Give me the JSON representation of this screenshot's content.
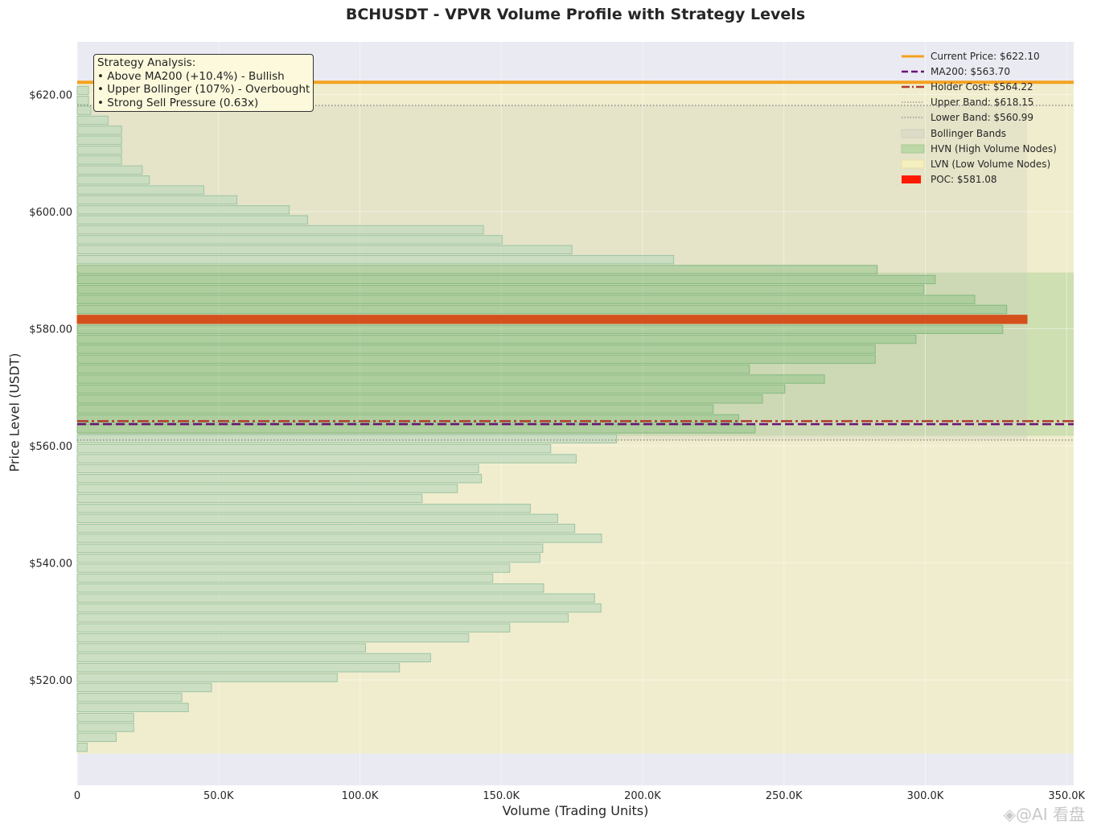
{
  "chart_data": {
    "type": "bar",
    "orientation": "horizontal",
    "title": "BCHUSDT - VPVR Volume Profile with Strategy Levels",
    "xlabel": "Volume (Trading Units)",
    "ylabel": "Price Level (USDT)",
    "xlim": [
      0,
      352500
    ],
    "ylim": [
      502,
      629
    ],
    "x_ticks": [
      0,
      50000,
      100000,
      150000,
      200000,
      250000,
      300000,
      350000
    ],
    "x_tick_labels": [
      "0",
      "50.0K",
      "100.0K",
      "150.0K",
      "200.0K",
      "250.0K",
      "300.0K",
      "350.0K"
    ],
    "y_ticks": [
      520,
      540,
      560,
      580,
      600,
      620
    ],
    "y_tick_labels": [
      "$520.00",
      "$540.00",
      "$560.00",
      "$580.00",
      "$600.00",
      "$620.00"
    ],
    "bin_size": 1.7,
    "price_levels": [
      508.5,
      510.2,
      511.9,
      513.6,
      515.3,
      517.0,
      518.7,
      520.4,
      522.1,
      523.8,
      525.5,
      527.2,
      528.9,
      530.6,
      532.3,
      534.0,
      535.7,
      537.4,
      539.1,
      540.8,
      542.5,
      544.2,
      545.9,
      547.6,
      549.3,
      551.0,
      552.7,
      554.4,
      556.1,
      557.8,
      559.5,
      561.2,
      562.9,
      564.6,
      566.3,
      568.0,
      569.7,
      571.4,
      573.1,
      574.8,
      576.5,
      578.2,
      579.9,
      581.6,
      583.3,
      585.0,
      586.7,
      588.4,
      590.1,
      591.8,
      593.5,
      595.2,
      596.9,
      598.6,
      600.3,
      602.0,
      603.7,
      605.4,
      607.1,
      608.8,
      610.5,
      612.2,
      613.9,
      615.6,
      617.3,
      619.0,
      620.7
    ],
    "volumes": [
      3500,
      13800,
      20000,
      20000,
      39300,
      37000,
      47500,
      92000,
      114000,
      125000,
      102000,
      138500,
      153000,
      173700,
      185300,
      183000,
      165000,
      147000,
      153000,
      163700,
      164700,
      185500,
      176000,
      170000,
      160300,
      122000,
      134500,
      143000,
      142000,
      176500,
      167500,
      190800,
      239800,
      234000,
      225000,
      242400,
      250300,
      264300,
      237800,
      282300,
      282300,
      296700,
      327400,
      336000,
      328800,
      317500,
      299500,
      303500,
      283000,
      211000,
      175000,
      150300,
      143700,
      81500,
      75000,
      56500,
      44800,
      25500,
      23000,
      15700,
      15700,
      15700,
      15700,
      10900,
      4800,
      4000,
      4000
    ],
    "bin_type": [
      "LVN",
      "LVN",
      "LVN",
      "LVN",
      "LVN",
      "LVN",
      "LVN",
      "LVN",
      "LVN",
      "LVN",
      "LVN",
      "LVN",
      "LVN",
      "LVN",
      "LVN",
      "LVN",
      "LVN",
      "LVN",
      "LVN",
      "LVN",
      "LVN",
      "LVN",
      "LVN",
      "LVN",
      "LVN",
      "LVN",
      "LVN",
      "LVN",
      "LVN",
      "LVN",
      "LVN",
      "LVN",
      "HVN",
      "HVN",
      "HVN",
      "HVN",
      "HVN",
      "HVN",
      "HVN",
      "HVN",
      "HVN",
      "HVN",
      "HVN",
      "POC",
      "HVN",
      "HVN",
      "HVN",
      "HVN",
      "HVN",
      "LVN",
      "LVN",
      "LVN",
      "LVN",
      "LVN",
      "LVN",
      "LVN",
      "LVN",
      "LVN",
      "LVN",
      "LVN",
      "LVN",
      "LVN",
      "LVN",
      "LVN",
      "LVN",
      "LVN",
      "LVN"
    ],
    "current_price": 622.1,
    "ma200": 563.7,
    "holder_cost": 564.22,
    "upper_band": 618.15,
    "lower_band": 560.99,
    "poc": 581.08,
    "value_area_low": 507.4,
    "hvn_zone": [
      561.7,
      589.6
    ],
    "legend_position": "top-right",
    "legend": [
      {
        "label": "Current Price: $622.10",
        "kind": "current",
        "color": "#f5a11e"
      },
      {
        "label": "MA200: $563.70",
        "kind": "ma200",
        "color": "#6b1278"
      },
      {
        "label": "Holder Cost: $564.22",
        "kind": "holder",
        "color": "#b03a2e"
      },
      {
        "label": "Upper Band: $618.15",
        "kind": "upper",
        "color": "#999999"
      },
      {
        "label": "Lower Band: $560.99",
        "kind": "lower",
        "color": "#999999"
      },
      {
        "label": "Bollinger Bands",
        "kind": "bands",
        "color": "#d9d9c5"
      },
      {
        "label": "HVN (High Volume Nodes)",
        "kind": "hvn",
        "color": "#bcd8a5"
      },
      {
        "label": "LVN (Low Volume Nodes)",
        "kind": "lvn",
        "color": "#f2eebf"
      },
      {
        "label": "POC: $581.08",
        "kind": "poc",
        "color": "#ff1a00"
      }
    ]
  },
  "annotation": {
    "heading": "Strategy Analysis:",
    "lines": [
      "• Above MA200 (+10.4%) - Bullish",
      "• Upper Bollinger (107%) - Overbought",
      "• Strong Sell Pressure (0.63x)"
    ]
  },
  "watermark": "◈@AI 看盘"
}
